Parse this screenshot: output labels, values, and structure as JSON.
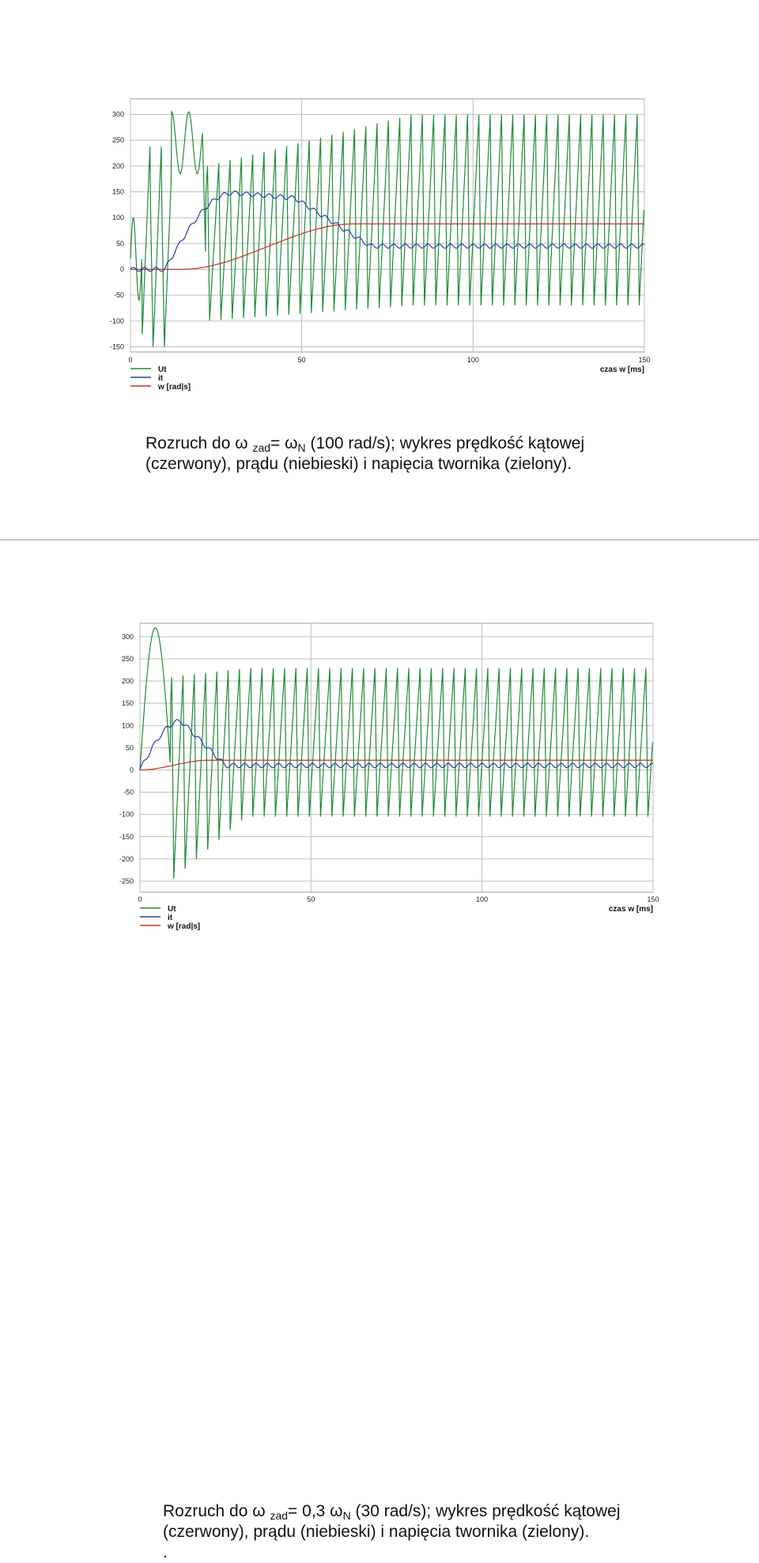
{
  "chart_data": [
    {
      "type": "line",
      "title": "",
      "xlabel": "czas w [ms]",
      "ylabel": "",
      "xlim": [
        0,
        150
      ],
      "ylim": [
        -160,
        330
      ],
      "x_ticks": [
        "0",
        "50",
        "100",
        "150"
      ],
      "y_ticks": [
        "300",
        "250",
        "200",
        "150",
        "100",
        "50",
        "0",
        "-50",
        "-100",
        "-150"
      ],
      "grid": true,
      "legend_position": "bottom-left",
      "series": [
        {
          "name": "Ut",
          "color": "#1f8a3a",
          "description_values": {
            "steady_peak": 300,
            "steady_trough": -70,
            "period_ms": 3.3
          }
        },
        {
          "name": "it",
          "color": "#2b3f9e",
          "description_values": {
            "peak": 148,
            "peak_time_ms": 30,
            "steady": 45
          }
        },
        {
          "name": "w [rad|s]",
          "color": "#c0302a",
          "description_values": {
            "final": 88,
            "rise_start_ms": 15,
            "settle_ms": 65
          }
        }
      ]
    },
    {
      "type": "line",
      "title": "",
      "xlabel": "czas w [ms]",
      "ylabel": "",
      "xlim": [
        0,
        150
      ],
      "ylim": [
        -275,
        330
      ],
      "x_ticks": [
        "0",
        "50",
        "100",
        "150"
      ],
      "y_ticks": [
        "300",
        "250",
        "200",
        "150",
        "100",
        "50",
        "0",
        "-50",
        "-100",
        "-150",
        "-200",
        "-250"
      ],
      "grid": true,
      "legend_position": "bottom-left",
      "series": [
        {
          "name": "Ut",
          "color": "#1f8a3a",
          "description_values": {
            "steady_peak": 225,
            "steady_trough": -105,
            "period_ms": 3.3
          }
        },
        {
          "name": "it",
          "color": "#2b3f9e",
          "description_values": {
            "peak": 110,
            "peak_time_ms": 12,
            "steady": 10
          }
        },
        {
          "name": "w [rad|s]",
          "color": "#c0302a",
          "description_values": {
            "final": 22,
            "settle_ms": 20
          }
        }
      ]
    }
  ],
  "captions": [
    {
      "prefix": "Rozruch do ω ",
      "sub1": "zad",
      "mid": "= ω",
      "sub2": "N",
      "suffix": " (100 rad/s); wykres prędkość kątowej",
      "line2": "(czerwony), prądu (niebieski) i napięcia twornika (zielony)."
    },
    {
      "prefix": "Rozruch do ω ",
      "sub1": "zad",
      "mid": "= 0,3 ω",
      "sub2": "N",
      "suffix": " (30 rad/s); wykres prędkość kątowej",
      "line2": "(czerwony), prądu (niebieski) i napięcia twornika (zielony).",
      "line3": "."
    }
  ],
  "legend": [
    "Ut",
    "it",
    "w [rad|s]"
  ],
  "colors": {
    "ut": "#1f8a3a",
    "it": "#2b3f9e",
    "w": "#c0302a",
    "grid": "#bdbdbd"
  }
}
